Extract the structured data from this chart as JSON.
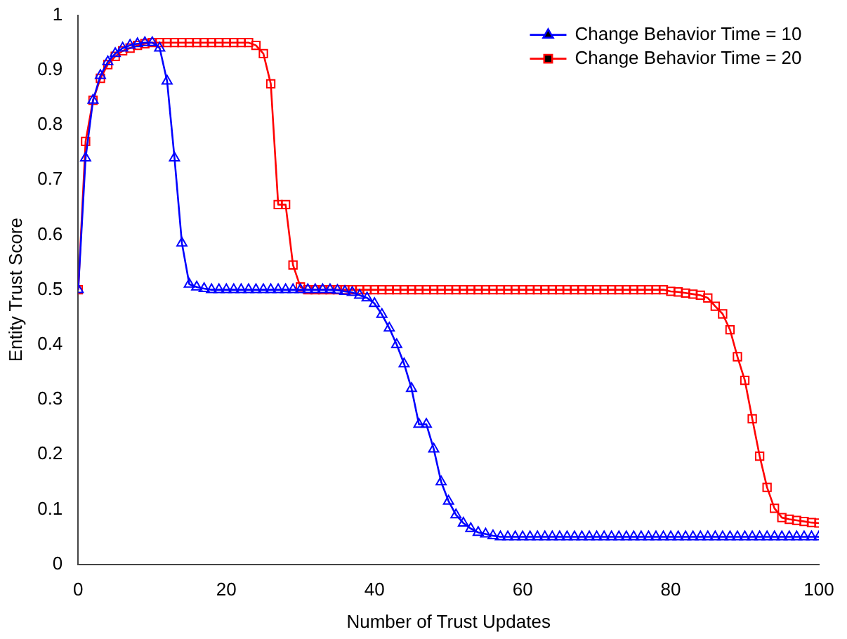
{
  "chart_data": {
    "type": "line",
    "xlabel": "Number of Trust Updates",
    "ylabel": "Entity Trust Score",
    "xlim": [
      0,
      100
    ],
    "xticks": [
      0,
      20,
      40,
      60,
      80,
      100
    ],
    "ylim": [
      0,
      1
    ],
    "yticks": [
      0,
      0.1,
      0.2,
      0.3,
      0.4,
      0.5,
      0.6,
      0.7,
      0.8,
      0.9,
      1
    ],
    "grid": false,
    "legend": "top right",
    "line_style": "solid",
    "x": [
      0,
      1,
      2,
      3,
      4,
      5,
      6,
      7,
      8,
      9,
      10,
      11,
      12,
      13,
      14,
      15,
      16,
      17,
      18,
      19,
      20,
      21,
      22,
      23,
      24,
      25,
      26,
      27,
      28,
      29,
      30,
      31,
      32,
      33,
      34,
      35,
      36,
      37,
      38,
      39,
      40,
      41,
      42,
      43,
      44,
      45,
      46,
      47,
      48,
      49,
      50,
      51,
      52,
      53,
      54,
      55,
      56,
      57,
      58,
      59,
      60,
      61,
      62,
      63,
      64,
      65,
      66,
      67,
      68,
      69,
      70,
      71,
      72,
      73,
      74,
      75,
      76,
      77,
      78,
      79,
      80,
      81,
      82,
      83,
      84,
      85,
      86,
      87,
      88,
      89,
      90,
      91,
      92,
      93,
      94,
      95,
      96,
      97,
      98,
      99,
      100
    ],
    "series": [
      {
        "name": "Change Behavior Time = 10",
        "color": "#0000ff",
        "marker": "triangle",
        "values": [
          0.5,
          0.74,
          0.845,
          0.89,
          0.915,
          0.93,
          0.94,
          0.945,
          0.948,
          0.95,
          0.95,
          0.94,
          0.88,
          0.74,
          0.585,
          0.51,
          0.505,
          0.502,
          0.5,
          0.5,
          0.5,
          0.5,
          0.5,
          0.5,
          0.5,
          0.5,
          0.5,
          0.5,
          0.5,
          0.5,
          0.5,
          0.5,
          0.5,
          0.5,
          0.5,
          0.499,
          0.497,
          0.495,
          0.49,
          0.485,
          0.475,
          0.455,
          0.43,
          0.4,
          0.365,
          0.32,
          0.255,
          0.255,
          0.21,
          0.15,
          0.115,
          0.09,
          0.075,
          0.065,
          0.058,
          0.055,
          0.052,
          0.05,
          0.05,
          0.05,
          0.05,
          0.05,
          0.05,
          0.05,
          0.05,
          0.05,
          0.05,
          0.05,
          0.05,
          0.05,
          0.05,
          0.05,
          0.05,
          0.05,
          0.05,
          0.05,
          0.05,
          0.05,
          0.05,
          0.05,
          0.05,
          0.05,
          0.05,
          0.05,
          0.05,
          0.05,
          0.05,
          0.05,
          0.05,
          0.05,
          0.05,
          0.05,
          0.05,
          0.05,
          0.05,
          0.05,
          0.05,
          0.05,
          0.05,
          0.05,
          0.05
        ]
      },
      {
        "name": "Change Behavior Time = 20",
        "color": "#ff0000",
        "marker": "square",
        "values": [
          0.5,
          0.77,
          0.845,
          0.885,
          0.91,
          0.925,
          0.935,
          0.94,
          0.945,
          0.948,
          0.95,
          0.95,
          0.95,
          0.95,
          0.95,
          0.95,
          0.95,
          0.95,
          0.95,
          0.95,
          0.95,
          0.95,
          0.95,
          0.95,
          0.945,
          0.93,
          0.875,
          0.655,
          0.655,
          0.545,
          0.505,
          0.5,
          0.5,
          0.5,
          0.5,
          0.5,
          0.5,
          0.5,
          0.5,
          0.5,
          0.5,
          0.5,
          0.5,
          0.5,
          0.5,
          0.5,
          0.5,
          0.5,
          0.5,
          0.5,
          0.5,
          0.5,
          0.5,
          0.5,
          0.5,
          0.5,
          0.5,
          0.5,
          0.5,
          0.5,
          0.5,
          0.5,
          0.5,
          0.5,
          0.5,
          0.5,
          0.5,
          0.5,
          0.5,
          0.5,
          0.5,
          0.5,
          0.5,
          0.5,
          0.5,
          0.5,
          0.5,
          0.5,
          0.5,
          0.5,
          0.497,
          0.496,
          0.494,
          0.492,
          0.49,
          0.485,
          0.47,
          0.456,
          0.427,
          0.378,
          0.335,
          0.265,
          0.197,
          0.14,
          0.102,
          0.085,
          0.082,
          0.08,
          0.078,
          0.076,
          0.075
        ]
      }
    ]
  }
}
